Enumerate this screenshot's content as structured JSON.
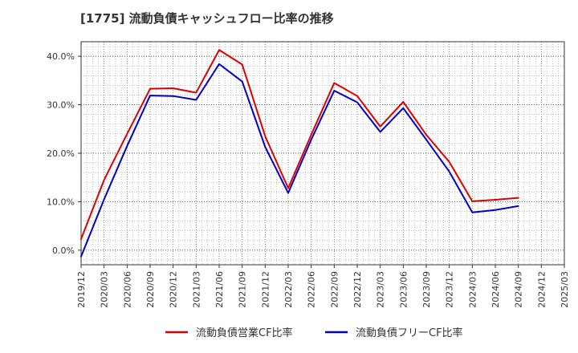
{
  "chart_data": {
    "type": "line",
    "title": "[1775]  流動負債キャッシュフロー比率の推移",
    "xlabel": "",
    "ylabel": "",
    "x": [
      "2019/12",
      "2020/03",
      "2020/06",
      "2020/09",
      "2020/12",
      "2021/03",
      "2021/06",
      "2021/09",
      "2021/12",
      "2022/03",
      "2022/06",
      "2022/09",
      "2022/12",
      "2023/03",
      "2023/06",
      "2023/09",
      "2023/12",
      "2024/03",
      "2024/06",
      "2024/09",
      "2024/12",
      "2025/03"
    ],
    "ylim": [
      -3,
      43
    ],
    "yticks": [
      0,
      10,
      20,
      30,
      40
    ],
    "ytick_labels": [
      "0.0%",
      "10.0%",
      "20.0%",
      "30.0%",
      "40.0%"
    ],
    "grid": true,
    "legend_position": "bottom",
    "series": [
      {
        "name": "流動負債営業CF比率",
        "color": "#dd0000",
        "x": [
          "2019/12",
          "2020/03",
          "2020/06",
          "2020/09",
          "2020/12",
          "2021/03",
          "2021/06",
          "2021/09",
          "2021/12",
          "2022/03",
          "2022/06",
          "2022/09",
          "2022/12",
          "2023/03",
          "2023/06",
          "2023/09",
          "2023/12",
          "2024/03",
          "2024/06",
          "2024/09"
        ],
        "values": [
          2.3,
          14.5,
          24.0,
          33.3,
          33.4,
          32.5,
          41.3,
          38.3,
          23.5,
          12.8,
          23.8,
          34.5,
          31.8,
          25.5,
          30.6,
          23.8,
          18.2,
          10.1,
          10.4,
          10.8
        ]
      },
      {
        "name": "流動負債フリーCF比率",
        "color": "#0000cc",
        "x": [
          "2019/12",
          "2020/03",
          "2020/06",
          "2020/09",
          "2020/12",
          "2021/03",
          "2021/06",
          "2021/09",
          "2021/12",
          "2022/03",
          "2022/06",
          "2022/09",
          "2022/12",
          "2023/03",
          "2023/06",
          "2023/09",
          "2023/12",
          "2024/03",
          "2024/06",
          "2024/09"
        ],
        "values": [
          -1.3,
          10.5,
          21.5,
          31.9,
          31.8,
          31.0,
          38.4,
          34.8,
          21.3,
          11.8,
          22.8,
          32.9,
          30.5,
          24.4,
          29.3,
          22.8,
          16.2,
          7.8,
          8.3,
          9.1
        ]
      }
    ]
  }
}
